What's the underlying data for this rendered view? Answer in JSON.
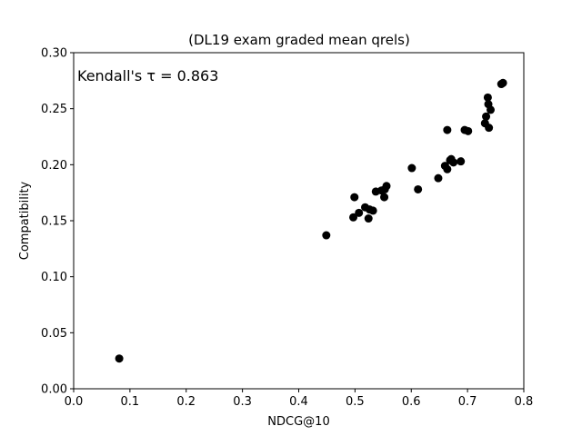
{
  "chart_data": {
    "type": "scatter",
    "title": "(DL19 exam graded mean qrels)",
    "xlabel": "NDCG@10",
    "ylabel": "Compatibility",
    "xlim": [
      0.0,
      0.8
    ],
    "ylim": [
      0.0,
      0.3
    ],
    "xticks": [
      "0.0",
      "0.1",
      "0.2",
      "0.3",
      "0.4",
      "0.5",
      "0.6",
      "0.7",
      "0.8"
    ],
    "yticks": [
      "0.00",
      "0.05",
      "0.10",
      "0.15",
      "0.20",
      "0.25",
      "0.30"
    ],
    "grid": false,
    "annotation": "Kendall's τ = 0.863",
    "marker_color": "#000000",
    "points": [
      {
        "x": 0.081,
        "y": 0.027
      },
      {
        "x": 0.449,
        "y": 0.137
      },
      {
        "x": 0.497,
        "y": 0.153
      },
      {
        "x": 0.499,
        "y": 0.171
      },
      {
        "x": 0.507,
        "y": 0.157
      },
      {
        "x": 0.518,
        "y": 0.162
      },
      {
        "x": 0.524,
        "y": 0.152
      },
      {
        "x": 0.526,
        "y": 0.16
      },
      {
        "x": 0.532,
        "y": 0.159
      },
      {
        "x": 0.537,
        "y": 0.176
      },
      {
        "x": 0.547,
        "y": 0.177
      },
      {
        "x": 0.552,
        "y": 0.171
      },
      {
        "x": 0.553,
        "y": 0.178
      },
      {
        "x": 0.556,
        "y": 0.181
      },
      {
        "x": 0.601,
        "y": 0.197
      },
      {
        "x": 0.612,
        "y": 0.178
      },
      {
        "x": 0.648,
        "y": 0.188
      },
      {
        "x": 0.66,
        "y": 0.199
      },
      {
        "x": 0.664,
        "y": 0.196
      },
      {
        "x": 0.664,
        "y": 0.231
      },
      {
        "x": 0.669,
        "y": 0.204
      },
      {
        "x": 0.671,
        "y": 0.205
      },
      {
        "x": 0.675,
        "y": 0.202
      },
      {
        "x": 0.688,
        "y": 0.203
      },
      {
        "x": 0.695,
        "y": 0.231
      },
      {
        "x": 0.701,
        "y": 0.23
      },
      {
        "x": 0.731,
        "y": 0.237
      },
      {
        "x": 0.733,
        "y": 0.243
      },
      {
        "x": 0.736,
        "y": 0.26
      },
      {
        "x": 0.737,
        "y": 0.254
      },
      {
        "x": 0.738,
        "y": 0.233
      },
      {
        "x": 0.741,
        "y": 0.249
      },
      {
        "x": 0.76,
        "y": 0.272
      },
      {
        "x": 0.763,
        "y": 0.273
      }
    ]
  }
}
